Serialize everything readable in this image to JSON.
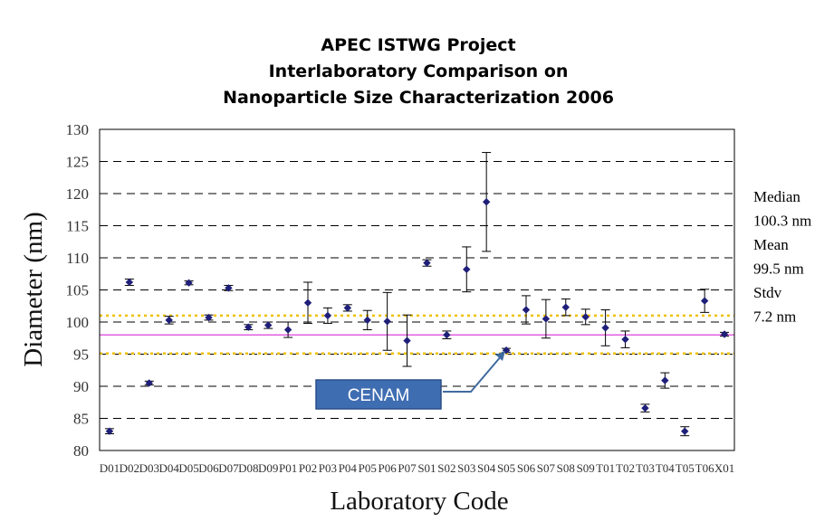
{
  "chart_data": {
    "type": "scatter",
    "title_lines": [
      "APEC ISTWG Project",
      "Interlaboratory Comparison on",
      "Nanoparticle Size Characterization 2006"
    ],
    "xlabel": "Laboratory Code",
    "ylabel": "Diameter (nm)",
    "ylim": [
      80,
      130
    ],
    "yticks": [
      80,
      85,
      90,
      95,
      100,
      105,
      110,
      115,
      120,
      125,
      130
    ],
    "grid": "dashed-horizontal",
    "categories": [
      "D01",
      "D02",
      "D03",
      "D04",
      "D05",
      "D06",
      "D07",
      "D08",
      "D09",
      "P01",
      "P02",
      "P03",
      "P04",
      "P05",
      "P06",
      "P07",
      "S01",
      "S02",
      "S03",
      "S04",
      "S05",
      "S06",
      "S07",
      "S08",
      "S09",
      "T01",
      "T02",
      "T03",
      "T04",
      "T05",
      "T06",
      "X01"
    ],
    "values": [
      83.0,
      106.2,
      90.5,
      100.3,
      106.1,
      100.7,
      105.3,
      99.2,
      99.5,
      98.8,
      103.0,
      101.0,
      102.2,
      100.3,
      100.1,
      97.1,
      109.2,
      98.0,
      108.2,
      118.7,
      95.6,
      101.9,
      100.5,
      102.3,
      100.8,
      99.1,
      97.3,
      86.6,
      90.9,
      83.0,
      103.3,
      98.1
    ],
    "errors": [
      0.4,
      0.5,
      0.3,
      0.6,
      0.3,
      0.4,
      0.4,
      0.4,
      0.5,
      1.2,
      3.2,
      1.2,
      0.5,
      1.5,
      4.5,
      4.0,
      0.5,
      0.6,
      3.5,
      7.7,
      0.3,
      2.2,
      3.0,
      1.3,
      1.2,
      2.8,
      1.3,
      0.6,
      1.2,
      0.7,
      1.8,
      0.3
    ],
    "reference_lines": [
      {
        "value": 98.0,
        "color": "#e060e0",
        "style": "solid"
      },
      {
        "value": 101.0,
        "color": "#f0c000",
        "style": "dotted"
      },
      {
        "value": 95.1,
        "color": "#f0c000",
        "style": "dotted"
      }
    ],
    "stats": [
      "Median",
      "100.3 nm",
      "Mean",
      "99.5 nm",
      "Stdv",
      "7.2 nm"
    ],
    "annotation": {
      "text": "CENAM",
      "target": "S05"
    },
    "marker_color": "#1f1f7a"
  }
}
